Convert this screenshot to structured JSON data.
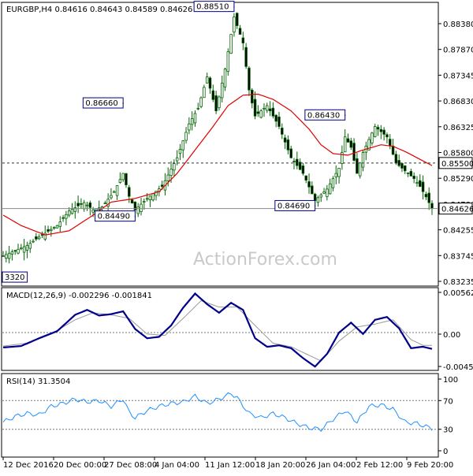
{
  "chart_data": [
    {
      "type": "candlestick",
      "title": "EURGBP,H4  0.84616 0.84643 0.84589 0.84626",
      "ylim": [
        0.8317,
        0.8855
      ],
      "y_ticks": [
        "0.88380",
        "0.87870",
        "0.87345",
        "0.86830",
        "0.86325",
        "0.85800",
        "0.85290",
        "0.84780",
        "0.84255",
        "0.83745",
        "0.83235"
      ],
      "x_ticks": [
        "12 Dec 2016",
        "20 Dec 00:00",
        "27 Dec 08:00",
        "4 Jan 04:00",
        "11 Jan 12:00",
        "18 Jan 20:00",
        "26 Jan 04:00",
        "2 Feb 12:00",
        "9 Feb 20:00"
      ],
      "price_path": [
        [
          0,
          0.8372
        ],
        [
          4,
          0.8382
        ],
        [
          8,
          0.8392
        ],
        [
          12,
          0.8408
        ],
        [
          18,
          0.843
        ],
        [
          22,
          0.8458
        ],
        [
          27,
          0.8474
        ],
        [
          30,
          0.846
        ],
        [
          33,
          0.8466
        ],
        [
          37,
          0.8495
        ],
        [
          40,
          0.853
        ],
        [
          42,
          0.8486
        ],
        [
          44,
          0.846
        ],
        [
          48,
          0.8482
        ],
        [
          53,
          0.8505
        ],
        [
          58,
          0.856
        ],
        [
          62,
          0.8625
        ],
        [
          65,
          0.8655
        ],
        [
          68,
          0.8715
        ],
        [
          71,
          0.865
        ],
        [
          74,
          0.873
        ],
        [
          77,
          0.883
        ],
        [
          80,
          0.878
        ],
        [
          82,
          0.869
        ],
        [
          84,
          0.864
        ],
        [
          88,
          0.866
        ],
        [
          92,
          0.862
        ],
        [
          96,
          0.856
        ],
        [
          100,
          0.853
        ],
        [
          104,
          0.8478
        ],
        [
          108,
          0.85
        ],
        [
          112,
          0.854
        ],
        [
          114,
          0.86
        ],
        [
          116,
          0.858
        ],
        [
          118,
          0.853
        ],
        [
          120,
          0.857
        ],
        [
          124,
          0.862
        ],
        [
          128,
          0.86
        ],
        [
          131,
          0.855
        ],
        [
          134,
          0.8535
        ],
        [
          137,
          0.852
        ],
        [
          139,
          0.8505
        ],
        [
          141,
          0.8485
        ],
        [
          143,
          0.8463
        ]
      ],
      "moving_average": [
        [
          0,
          0.845
        ],
        [
          6,
          0.843
        ],
        [
          14,
          0.8412
        ],
        [
          22,
          0.842
        ],
        [
          30,
          0.845
        ],
        [
          36,
          0.8475
        ],
        [
          44,
          0.8482
        ],
        [
          52,
          0.8495
        ],
        [
          58,
          0.853
        ],
        [
          64,
          0.8575
        ],
        [
          70,
          0.862
        ],
        [
          75,
          0.866
        ],
        [
          80,
          0.868
        ],
        [
          85,
          0.8682
        ],
        [
          90,
          0.8672
        ],
        [
          96,
          0.865
        ],
        [
          102,
          0.8615
        ],
        [
          106,
          0.8585
        ],
        [
          110,
          0.8568
        ],
        [
          115,
          0.8565
        ],
        [
          120,
          0.8575
        ],
        [
          126,
          0.8585
        ],
        [
          130,
          0.8582
        ],
        [
          134,
          0.8572
        ],
        [
          138,
          0.856
        ],
        [
          143,
          0.8545
        ]
      ],
      "price_labels": [
        {
          "x": 77,
          "y": 0.8851,
          "text": "0.88510"
        },
        {
          "x": 40,
          "y": 0.8666,
          "text": "0.86660"
        },
        {
          "x": 44,
          "y": 0.8449,
          "text": "0.84490"
        },
        {
          "x": 104,
          "y": 0.8469,
          "text": "0.84690"
        },
        {
          "x": 114,
          "y": 0.8643,
          "text": "0.86430"
        },
        {
          "x": 0,
          "y": 0.8332,
          "text": "3320"
        }
      ],
      "level_line": 0.855,
      "level_label": "0.85500",
      "current_line": 0.84626,
      "current_label": "0.84626",
      "watermark": "ActionForex.com",
      "colors": {
        "candles": "#006400",
        "ma": "#e00000",
        "labels": "#000080"
      }
    },
    {
      "type": "line",
      "title": "MACD(12,26,9) -0.002296 -0.001841",
      "ylim": [
        -0.005,
        0.006
      ],
      "y_ticks": [
        "0.005627",
        "0.00",
        "-0.004586"
      ],
      "series": [
        {
          "name": "MACD",
          "color": "#00008b",
          "points": [
            [
              0,
              -0.0021
            ],
            [
              6,
              -0.0019
            ],
            [
              12,
              -0.0008
            ],
            [
              18,
              0.0002
            ],
            [
              24,
              0.0025
            ],
            [
              28,
              0.0032
            ],
            [
              32,
              0.0024
            ],
            [
              36,
              0.0026
            ],
            [
              40,
              0.003
            ],
            [
              44,
              0.0005
            ],
            [
              48,
              -0.0008
            ],
            [
              52,
              -0.0006
            ],
            [
              56,
              0.001
            ],
            [
              60,
              0.0035
            ],
            [
              64,
              0.0055
            ],
            [
              68,
              0.004
            ],
            [
              72,
              0.0028
            ],
            [
              76,
              0.0042
            ],
            [
              80,
              0.0032
            ],
            [
              84,
              -0.0008
            ],
            [
              88,
              -0.002
            ],
            [
              92,
              -0.0018
            ],
            [
              96,
              -0.0022
            ],
            [
              100,
              -0.0036
            ],
            [
              104,
              -0.0048
            ],
            [
              108,
              -0.003
            ],
            [
              112,
              0.0
            ],
            [
              116,
              0.0014
            ],
            [
              120,
              -0.0002
            ],
            [
              124,
              0.0018
            ],
            [
              128,
              0.0022
            ],
            [
              132,
              0.0006
            ],
            [
              136,
              -0.0022
            ],
            [
              140,
              -0.002
            ],
            [
              143,
              -0.0023
            ]
          ]
        },
        {
          "name": "Signal",
          "color": "#999999",
          "points": [
            [
              0,
              -0.0019
            ],
            [
              8,
              -0.0015
            ],
            [
              16,
              -0.0002
            ],
            [
              24,
              0.0018
            ],
            [
              30,
              0.0028
            ],
            [
              36,
              0.0025
            ],
            [
              42,
              0.002
            ],
            [
              48,
              -0.0002
            ],
            [
              54,
              -0.0004
            ],
            [
              60,
              0.002
            ],
            [
              66,
              0.0045
            ],
            [
              72,
              0.0036
            ],
            [
              78,
              0.0036
            ],
            [
              84,
              0.001
            ],
            [
              90,
              -0.0015
            ],
            [
              96,
              -0.002
            ],
            [
              102,
              -0.0032
            ],
            [
              106,
              -0.004
            ],
            [
              112,
              -0.0012
            ],
            [
              118,
              0.0008
            ],
            [
              124,
              0.0012
            ],
            [
              130,
              0.0018
            ],
            [
              136,
              -0.001
            ],
            [
              140,
              -0.0018
            ],
            [
              143,
              -0.0018
            ]
          ]
        }
      ]
    },
    {
      "type": "line",
      "title": "RSI(14) 31.3504",
      "ylim": [
        0,
        100
      ],
      "y_ticks": [
        100,
        70,
        30,
        0
      ],
      "series": [
        {
          "name": "RSI",
          "color": "#1e90ff",
          "points": [
            [
              0,
              40
            ],
            [
              4,
              48
            ],
            [
              8,
              52
            ],
            [
              12,
              50
            ],
            [
              16,
              62
            ],
            [
              20,
              66
            ],
            [
              24,
              72
            ],
            [
              28,
              68
            ],
            [
              32,
              70
            ],
            [
              36,
              62
            ],
            [
              40,
              72
            ],
            [
              42,
              54
            ],
            [
              44,
              46
            ],
            [
              48,
              56
            ],
            [
              52,
              62
            ],
            [
              56,
              66
            ],
            [
              60,
              68
            ],
            [
              64,
              76
            ],
            [
              68,
              66
            ],
            [
              72,
              72
            ],
            [
              76,
              80
            ],
            [
              78,
              74
            ],
            [
              82,
              52
            ],
            [
              86,
              46
            ],
            [
              90,
              52
            ],
            [
              94,
              46
            ],
            [
              98,
              38
            ],
            [
              102,
              32
            ],
            [
              106,
              30
            ],
            [
              110,
              44
            ],
            [
              114,
              56
            ],
            [
              118,
              40
            ],
            [
              122,
              62
            ],
            [
              126,
              64
            ],
            [
              130,
              58
            ],
            [
              134,
              40
            ],
            [
              138,
              38
            ],
            [
              143,
              31
            ]
          ]
        }
      ]
    }
  ]
}
